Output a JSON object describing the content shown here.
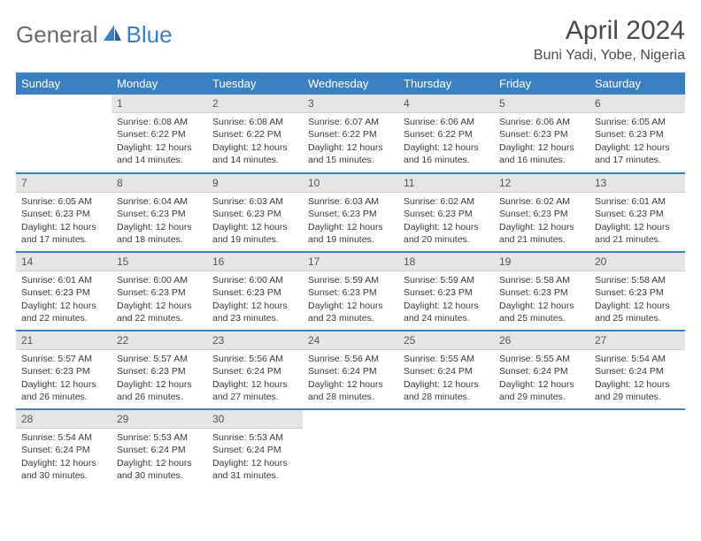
{
  "logo": {
    "general": "General",
    "blue": "Blue"
  },
  "title": "April 2024",
  "location": "Buni Yadi, Yobe, Nigeria",
  "colors": {
    "header_bg": "#3a80c2",
    "header_text": "#ffffff",
    "daynum_bg": "#e5e5e5",
    "text": "#3a3a3a",
    "rule": "#3a80c2"
  },
  "fonts": {
    "title_size_pt": 22,
    "location_size_pt": 12,
    "header_size_pt": 10,
    "cell_size_pt": 8
  },
  "weekdays": [
    "Sunday",
    "Monday",
    "Tuesday",
    "Wednesday",
    "Thursday",
    "Friday",
    "Saturday"
  ],
  "weeks": [
    [
      null,
      {
        "n": "1",
        "sr": "6:08 AM",
        "ss": "6:22 PM",
        "dl": "12 hours and 14 minutes."
      },
      {
        "n": "2",
        "sr": "6:08 AM",
        "ss": "6:22 PM",
        "dl": "12 hours and 14 minutes."
      },
      {
        "n": "3",
        "sr": "6:07 AM",
        "ss": "6:22 PM",
        "dl": "12 hours and 15 minutes."
      },
      {
        "n": "4",
        "sr": "6:06 AM",
        "ss": "6:22 PM",
        "dl": "12 hours and 16 minutes."
      },
      {
        "n": "5",
        "sr": "6:06 AM",
        "ss": "6:23 PM",
        "dl": "12 hours and 16 minutes."
      },
      {
        "n": "6",
        "sr": "6:05 AM",
        "ss": "6:23 PM",
        "dl": "12 hours and 17 minutes."
      }
    ],
    [
      {
        "n": "7",
        "sr": "6:05 AM",
        "ss": "6:23 PM",
        "dl": "12 hours and 17 minutes."
      },
      {
        "n": "8",
        "sr": "6:04 AM",
        "ss": "6:23 PM",
        "dl": "12 hours and 18 minutes."
      },
      {
        "n": "9",
        "sr": "6:03 AM",
        "ss": "6:23 PM",
        "dl": "12 hours and 19 minutes."
      },
      {
        "n": "10",
        "sr": "6:03 AM",
        "ss": "6:23 PM",
        "dl": "12 hours and 19 minutes."
      },
      {
        "n": "11",
        "sr": "6:02 AM",
        "ss": "6:23 PM",
        "dl": "12 hours and 20 minutes."
      },
      {
        "n": "12",
        "sr": "6:02 AM",
        "ss": "6:23 PM",
        "dl": "12 hours and 21 minutes."
      },
      {
        "n": "13",
        "sr": "6:01 AM",
        "ss": "6:23 PM",
        "dl": "12 hours and 21 minutes."
      }
    ],
    [
      {
        "n": "14",
        "sr": "6:01 AM",
        "ss": "6:23 PM",
        "dl": "12 hours and 22 minutes."
      },
      {
        "n": "15",
        "sr": "6:00 AM",
        "ss": "6:23 PM",
        "dl": "12 hours and 22 minutes."
      },
      {
        "n": "16",
        "sr": "6:00 AM",
        "ss": "6:23 PM",
        "dl": "12 hours and 23 minutes."
      },
      {
        "n": "17",
        "sr": "5:59 AM",
        "ss": "6:23 PM",
        "dl": "12 hours and 23 minutes."
      },
      {
        "n": "18",
        "sr": "5:59 AM",
        "ss": "6:23 PM",
        "dl": "12 hours and 24 minutes."
      },
      {
        "n": "19",
        "sr": "5:58 AM",
        "ss": "6:23 PM",
        "dl": "12 hours and 25 minutes."
      },
      {
        "n": "20",
        "sr": "5:58 AM",
        "ss": "6:23 PM",
        "dl": "12 hours and 25 minutes."
      }
    ],
    [
      {
        "n": "21",
        "sr": "5:57 AM",
        "ss": "6:23 PM",
        "dl": "12 hours and 26 minutes."
      },
      {
        "n": "22",
        "sr": "5:57 AM",
        "ss": "6:23 PM",
        "dl": "12 hours and 26 minutes."
      },
      {
        "n": "23",
        "sr": "5:56 AM",
        "ss": "6:24 PM",
        "dl": "12 hours and 27 minutes."
      },
      {
        "n": "24",
        "sr": "5:56 AM",
        "ss": "6:24 PM",
        "dl": "12 hours and 28 minutes."
      },
      {
        "n": "25",
        "sr": "5:55 AM",
        "ss": "6:24 PM",
        "dl": "12 hours and 28 minutes."
      },
      {
        "n": "26",
        "sr": "5:55 AM",
        "ss": "6:24 PM",
        "dl": "12 hours and 29 minutes."
      },
      {
        "n": "27",
        "sr": "5:54 AM",
        "ss": "6:24 PM",
        "dl": "12 hours and 29 minutes."
      }
    ],
    [
      {
        "n": "28",
        "sr": "5:54 AM",
        "ss": "6:24 PM",
        "dl": "12 hours and 30 minutes."
      },
      {
        "n": "29",
        "sr": "5:53 AM",
        "ss": "6:24 PM",
        "dl": "12 hours and 30 minutes."
      },
      {
        "n": "30",
        "sr": "5:53 AM",
        "ss": "6:24 PM",
        "dl": "12 hours and 31 minutes."
      },
      null,
      null,
      null,
      null
    ]
  ],
  "labels": {
    "sunrise": "Sunrise:",
    "sunset": "Sunset:",
    "daylight": "Daylight:"
  }
}
